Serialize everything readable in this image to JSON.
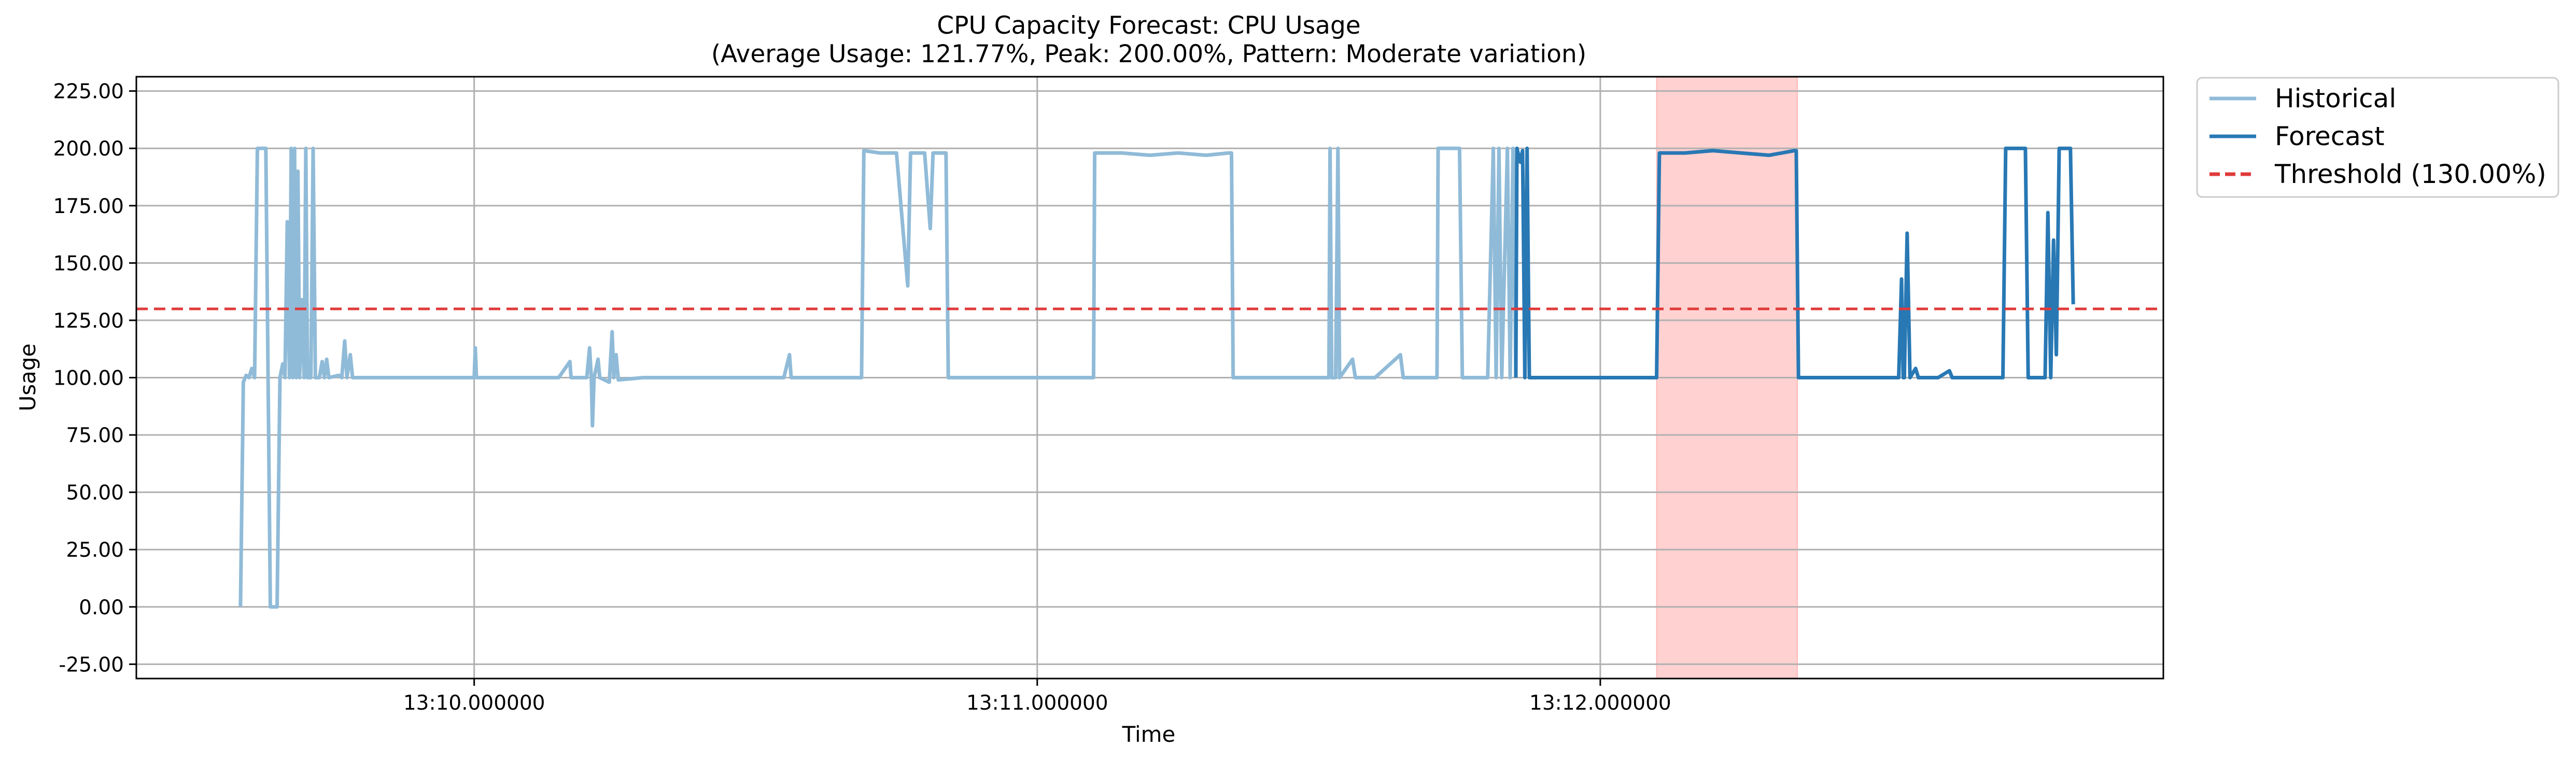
{
  "chart_data": {
    "type": "line",
    "title": "CPU Capacity Forecast: CPU Usage",
    "subtitle": "(Average Usage: 121.77%, Peak: 200.00%, Pattern: Moderate variation)",
    "xlabel": "Time",
    "ylabel": "Usage",
    "xlim": [
      -0.6,
      3.0
    ],
    "ylim": [
      -31.25,
      231.25
    ],
    "y_ticks": [
      -25,
      0,
      25,
      50,
      75,
      100,
      125,
      150,
      175,
      200,
      225
    ],
    "y_tick_labels": [
      "-25.00",
      "0.00",
      "25.00",
      "50.00",
      "75.00",
      "100.00",
      "125.00",
      "150.00",
      "175.00",
      "200.00",
      "225.00"
    ],
    "x_ticks": [
      0,
      1,
      2
    ],
    "x_tick_labels": [
      "13:10.000000",
      "13:11.000000",
      "13:12.000000"
    ],
    "grid": true,
    "legend_position": "outside top-right",
    "threshold": {
      "name": "Threshold (130.00%)",
      "value": 130,
      "color": "#e03a3a",
      "style": "dashed"
    },
    "highlight_band": {
      "x": [
        2.1,
        2.35
      ],
      "color": "#ff9999"
    },
    "series": [
      {
        "name": "Historical",
        "color": "#90bbd8",
        "points": [
          [
            -0.415,
            0
          ],
          [
            -0.41,
            98
          ],
          [
            -0.405,
            101
          ],
          [
            -0.4,
            100
          ],
          [
            -0.395,
            104
          ],
          [
            -0.39,
            100
          ],
          [
            -0.385,
            200
          ],
          [
            -0.375,
            200
          ],
          [
            -0.37,
            200
          ],
          [
            -0.366,
            100
          ],
          [
            -0.362,
            0
          ],
          [
            -0.35,
            0
          ],
          [
            -0.345,
            100
          ],
          [
            -0.34,
            106
          ],
          [
            -0.336,
            100
          ],
          [
            -0.332,
            168
          ],
          [
            -0.328,
            100
          ],
          [
            -0.325,
            200
          ],
          [
            -0.322,
            100
          ],
          [
            -0.319,
            200
          ],
          [
            -0.316,
            100
          ],
          [
            -0.313,
            190
          ],
          [
            -0.31,
            100
          ],
          [
            -0.306,
            134
          ],
          [
            -0.302,
            100
          ],
          [
            -0.299,
            200
          ],
          [
            -0.296,
            100
          ],
          [
            -0.29,
            100
          ],
          [
            -0.286,
            200
          ],
          [
            -0.282,
            100
          ],
          [
            -0.275,
            100
          ],
          [
            -0.27,
            107
          ],
          [
            -0.266,
            100
          ],
          [
            -0.262,
            108
          ],
          [
            -0.258,
            100
          ],
          [
            -0.24,
            101
          ],
          [
            -0.235,
            100
          ],
          [
            -0.23,
            116
          ],
          [
            -0.226,
            100
          ],
          [
            -0.22,
            110
          ],
          [
            -0.216,
            100
          ],
          [
            -0.15,
            100
          ],
          [
            -0.09,
            100
          ],
          [
            -0.05,
            100
          ],
          [
            0.0,
            100
          ],
          [
            0.002,
            113
          ],
          [
            0.004,
            100
          ],
          [
            0.06,
            100
          ],
          [
            0.1,
            100
          ],
          [
            0.15,
            100
          ],
          [
            0.17,
            107
          ],
          [
            0.172,
            100
          ],
          [
            0.2,
            100
          ],
          [
            0.205,
            113
          ],
          [
            0.208,
            100
          ],
          [
            0.21,
            79
          ],
          [
            0.213,
            100
          ],
          [
            0.22,
            108
          ],
          [
            0.223,
            100
          ],
          [
            0.24,
            98
          ],
          [
            0.245,
            120
          ],
          [
            0.248,
            100
          ],
          [
            0.252,
            110
          ],
          [
            0.256,
            99
          ],
          [
            0.3,
            100
          ],
          [
            0.35,
            100
          ],
          [
            0.4,
            100
          ],
          [
            0.45,
            100
          ],
          [
            0.5,
            100
          ],
          [
            0.55,
            100
          ],
          [
            0.56,
            110
          ],
          [
            0.563,
            100
          ],
          [
            0.6,
            100
          ],
          [
            0.64,
            100
          ],
          [
            0.68,
            100
          ],
          [
            0.688,
            100
          ],
          [
            0.692,
            199
          ],
          [
            0.72,
            198
          ],
          [
            0.75,
            198
          ],
          [
            0.77,
            140
          ],
          [
            0.775,
            198
          ],
          [
            0.8,
            198
          ],
          [
            0.81,
            165
          ],
          [
            0.815,
            198
          ],
          [
            0.83,
            198
          ],
          [
            0.838,
            198
          ],
          [
            0.842,
            100
          ],
          [
            0.9,
            100
          ],
          [
            0.95,
            100
          ],
          [
            1.0,
            100
          ],
          [
            1.05,
            100
          ],
          [
            1.1,
            100
          ],
          [
            1.102,
            198
          ],
          [
            1.15,
            198
          ],
          [
            1.2,
            197
          ],
          [
            1.25,
            198
          ],
          [
            1.3,
            197
          ],
          [
            1.34,
            198
          ],
          [
            1.345,
            198
          ],
          [
            1.348,
            100
          ],
          [
            1.4,
            100
          ],
          [
            1.45,
            100
          ],
          [
            1.5,
            100
          ],
          [
            1.518,
            100
          ],
          [
            1.52,
            200
          ],
          [
            1.523,
            100
          ],
          [
            1.53,
            100
          ],
          [
            1.534,
            200
          ],
          [
            1.537,
            100
          ],
          [
            1.56,
            108
          ],
          [
            1.565,
            100
          ],
          [
            1.6,
            100
          ],
          [
            1.645,
            110
          ],
          [
            1.65,
            100
          ],
          [
            1.66,
            100
          ],
          [
            1.7,
            100
          ],
          [
            1.71,
            100
          ],
          [
            1.712,
            200
          ],
          [
            1.75,
            200
          ],
          [
            1.755,
            100
          ],
          [
            1.79,
            100
          ],
          [
            1.8,
            100
          ],
          [
            1.81,
            200
          ],
          [
            1.815,
            100
          ],
          [
            1.82,
            200
          ],
          [
            1.825,
            100
          ],
          [
            1.835,
            200
          ],
          [
            1.84,
            100
          ],
          [
            1.845,
            200
          ],
          [
            1.85,
            100
          ]
        ]
      },
      {
        "name": "Forecast",
        "color": "#2878b4",
        "points": [
          [
            1.85,
            100
          ],
          [
            1.852,
            200
          ],
          [
            1.858,
            194
          ],
          [
            1.862,
            199
          ],
          [
            1.866,
            100
          ],
          [
            1.87,
            200
          ],
          [
            1.874,
            100
          ],
          [
            1.88,
            100
          ],
          [
            1.9,
            100
          ],
          [
            1.95,
            100
          ],
          [
            2.0,
            100
          ],
          [
            2.05,
            100
          ],
          [
            2.1,
            100
          ],
          [
            2.105,
            198
          ],
          [
            2.15,
            198
          ],
          [
            2.2,
            199
          ],
          [
            2.25,
            198
          ],
          [
            2.3,
            197
          ],
          [
            2.345,
            199
          ],
          [
            2.348,
            199
          ],
          [
            2.352,
            100
          ],
          [
            2.4,
            100
          ],
          [
            2.45,
            100
          ],
          [
            2.5,
            100
          ],
          [
            2.53,
            100
          ],
          [
            2.535,
            143
          ],
          [
            2.538,
            100
          ],
          [
            2.54,
            100
          ],
          [
            2.545,
            163
          ],
          [
            2.55,
            100
          ],
          [
            2.56,
            104
          ],
          [
            2.565,
            100
          ],
          [
            2.6,
            100
          ],
          [
            2.62,
            103
          ],
          [
            2.625,
            100
          ],
          [
            2.65,
            100
          ],
          [
            2.7,
            100
          ],
          [
            2.715,
            100
          ],
          [
            2.72,
            200
          ],
          [
            2.755,
            200
          ],
          [
            2.76,
            100
          ],
          [
            2.79,
            100
          ],
          [
            2.795,
            172
          ],
          [
            2.8,
            100
          ],
          [
            2.805,
            160
          ],
          [
            2.81,
            110
          ],
          [
            2.815,
            200
          ],
          [
            2.835,
            200
          ],
          [
            2.84,
            132
          ]
        ]
      }
    ]
  }
}
